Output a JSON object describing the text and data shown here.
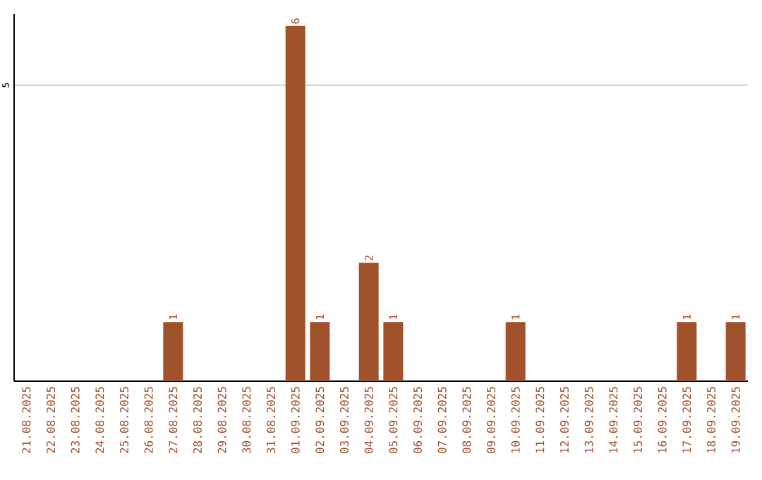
{
  "chart_data": {
    "type": "bar",
    "categories": [
      "21.08.2025",
      "22.08.2025",
      "23.08.2025",
      "24.08.2025",
      "25.08.2025",
      "26.08.2025",
      "27.08.2025",
      "28.08.2025",
      "29.08.2025",
      "30.08.2025",
      "31.08.2025",
      "01.09.2025",
      "02.09.2025",
      "03.09.2025",
      "04.09.2025",
      "05.09.2025",
      "06.09.2025",
      "07.09.2025",
      "08.09.2025",
      "09.09.2025",
      "10.09.2025",
      "11.09.2025",
      "12.09.2025",
      "13.09.2025",
      "14.09.2025",
      "15.09.2025",
      "16.09.2025",
      "17.09.2025",
      "18.09.2025",
      "19.09.2025"
    ],
    "values": [
      0,
      0,
      0,
      0,
      0,
      0,
      1,
      0,
      0,
      0,
      0,
      6,
      1,
      0,
      2,
      1,
      0,
      0,
      0,
      0,
      1,
      0,
      0,
      0,
      0,
      0,
      0,
      1,
      0,
      1
    ],
    "value_labels": [
      null,
      null,
      null,
      null,
      null,
      null,
      "1",
      null,
      null,
      null,
      null,
      "6",
      "1",
      null,
      "2",
      "1",
      null,
      null,
      null,
      null,
      "1",
      null,
      null,
      null,
      null,
      null,
      null,
      "1",
      null,
      "1"
    ],
    "color": "#a0522d",
    "ylim": [
      0,
      6.2
    ],
    "yticks": [
      5
    ],
    "grid": "y"
  }
}
